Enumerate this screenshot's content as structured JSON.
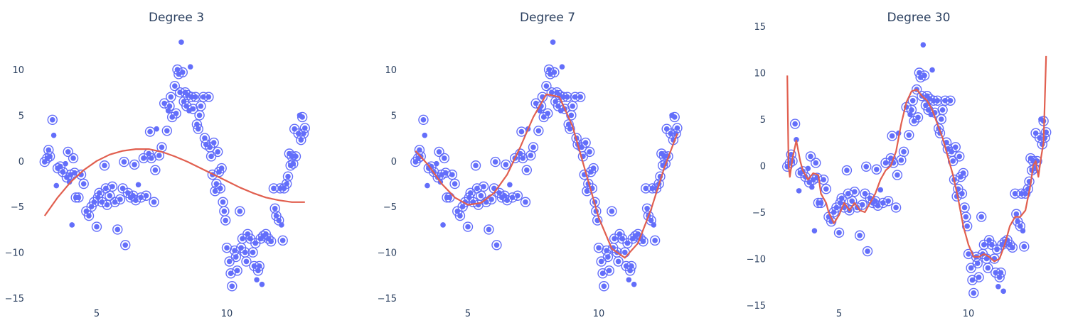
{
  "colors": {
    "points": "#636efa",
    "fit": "#e15f4f",
    "text": "#2a3f5f",
    "background": "#ffffff"
  },
  "chart_data": [
    {
      "type": "scatter",
      "title": "Degree 3",
      "xlim": [
        2.3,
        13.3
      ],
      "ylim": [
        -15.5,
        13.5
      ],
      "xticks": [
        5,
        10
      ],
      "yticks": [
        -15,
        -10,
        -5,
        0,
        5,
        10
      ],
      "grid": false,
      "legend": "none",
      "fit": [
        [
          3.0,
          -6.0
        ],
        [
          3.5,
          -4.0
        ],
        [
          4.0,
          -2.3
        ],
        [
          4.5,
          -1.0
        ],
        [
          5.0,
          0.0
        ],
        [
          5.5,
          0.7
        ],
        [
          6.0,
          1.1
        ],
        [
          6.5,
          1.3
        ],
        [
          7.0,
          1.3
        ],
        [
          7.5,
          1.0
        ],
        [
          8.0,
          0.5
        ],
        [
          8.5,
          -0.1
        ],
        [
          9.0,
          -0.8
        ],
        [
          9.5,
          -1.5
        ],
        [
          10.0,
          -2.2
        ],
        [
          10.5,
          -2.9
        ],
        [
          11.0,
          -3.5
        ],
        [
          11.5,
          -4.0
        ],
        [
          12.0,
          -4.3
        ],
        [
          12.5,
          -4.5
        ],
        [
          13.0,
          -4.5
        ]
      ]
    },
    {
      "type": "scatter",
      "title": "Degree 7",
      "xlim": [
        2.3,
        13.3
      ],
      "ylim": [
        -15.5,
        13.5
      ],
      "xticks": [
        5,
        10
      ],
      "yticks": [
        -15,
        -10,
        -5,
        0,
        5,
        10
      ],
      "grid": false,
      "legend": "none",
      "fit": [
        [
          3.0,
          1.1
        ],
        [
          3.5,
          -0.5
        ],
        [
          4.0,
          -2.5
        ],
        [
          4.5,
          -4.0
        ],
        [
          5.0,
          -4.8
        ],
        [
          5.5,
          -4.6
        ],
        [
          6.0,
          -3.5
        ],
        [
          6.5,
          -1.5
        ],
        [
          7.0,
          1.5
        ],
        [
          7.5,
          4.8
        ],
        [
          8.0,
          7.3
        ],
        [
          8.5,
          7.0
        ],
        [
          9.0,
          3.8
        ],
        [
          9.5,
          -1.2
        ],
        [
          10.0,
          -6.2
        ],
        [
          10.5,
          -9.6
        ],
        [
          11.0,
          -10.6
        ],
        [
          11.5,
          -9.0
        ],
        [
          12.0,
          -5.3
        ],
        [
          12.5,
          -0.8
        ],
        [
          13.0,
          3.0
        ]
      ]
    },
    {
      "type": "scatter",
      "title": "Degree 30",
      "xlim": [
        2.3,
        13.3
      ],
      "ylim": [
        -15.0,
        15.5
      ],
      "xticks": [
        5,
        10
      ],
      "yticks": [
        -15,
        -10,
        -5,
        0,
        5,
        10,
        15
      ],
      "grid": false,
      "legend": "none",
      "fit": [
        [
          3.0,
          9.7
        ],
        [
          3.05,
          0.0
        ],
        [
          3.1,
          -1.2
        ],
        [
          3.2,
          0.8
        ],
        [
          3.35,
          2.7
        ],
        [
          3.5,
          0.5
        ],
        [
          3.6,
          -0.5
        ],
        [
          3.8,
          -1.5
        ],
        [
          4.0,
          -0.8
        ],
        [
          4.2,
          -1.0
        ],
        [
          4.3,
          -3.0
        ],
        [
          4.5,
          -4.0
        ],
        [
          4.6,
          -5.0
        ],
        [
          4.8,
          -6.2
        ],
        [
          5.0,
          -5.3
        ],
        [
          5.2,
          -4.0
        ],
        [
          5.4,
          -4.8
        ],
        [
          5.6,
          -4.0
        ],
        [
          5.8,
          -4.8
        ],
        [
          6.0,
          -5.0
        ],
        [
          6.2,
          -4.0
        ],
        [
          6.4,
          -3.0
        ],
        [
          6.6,
          -1.5
        ],
        [
          6.8,
          -0.5
        ],
        [
          7.0,
          0.0
        ],
        [
          7.2,
          1.5
        ],
        [
          7.4,
          4.5
        ],
        [
          7.6,
          6.8
        ],
        [
          7.8,
          8.0
        ],
        [
          8.0,
          8.2
        ],
        [
          8.2,
          7.5
        ],
        [
          8.4,
          7.0
        ],
        [
          8.6,
          6.0
        ],
        [
          8.8,
          4.5
        ],
        [
          9.0,
          3.0
        ],
        [
          9.2,
          1.0
        ],
        [
          9.4,
          -1.0
        ],
        [
          9.6,
          -3.5
        ],
        [
          9.8,
          -6.5
        ],
        [
          10.0,
          -8.5
        ],
        [
          10.2,
          -9.8
        ],
        [
          10.4,
          -9.8
        ],
        [
          10.6,
          -9.5
        ],
        [
          10.8,
          -9.8
        ],
        [
          11.0,
          -10.3
        ],
        [
          11.2,
          -10.0
        ],
        [
          11.4,
          -8.5
        ],
        [
          11.6,
          -6.5
        ],
        [
          11.8,
          -5.5
        ],
        [
          12.0,
          -5.5
        ],
        [
          12.2,
          -4.8
        ],
        [
          12.4,
          -2.0
        ],
        [
          12.5,
          0.0
        ],
        [
          12.6,
          0.5
        ],
        [
          12.7,
          -1.2
        ],
        [
          12.8,
          0.8
        ],
        [
          12.9,
          2.5
        ],
        [
          13.0,
          11.8
        ]
      ]
    }
  ],
  "points": [
    {
      "x": 3.0,
      "y": -0.1,
      "c": 1
    },
    {
      "x": 3.1,
      "y": 0.3,
      "c": 1
    },
    {
      "x": 3.15,
      "y": 1.2,
      "c": 1
    },
    {
      "x": 3.2,
      "y": 0.5,
      "c": 1
    },
    {
      "x": 3.3,
      "y": 4.5,
      "c": 1
    },
    {
      "x": 3.35,
      "y": 2.8,
      "c": 0
    },
    {
      "x": 3.45,
      "y": -2.7,
      "c": 0
    },
    {
      "x": 3.5,
      "y": -0.8,
      "c": 1
    },
    {
      "x": 3.6,
      "y": -0.6,
      "c": 1
    },
    {
      "x": 3.7,
      "y": -1.2,
      "c": 1
    },
    {
      "x": 3.8,
      "y": -0.3,
      "c": 0
    },
    {
      "x": 3.85,
      "y": -1.8,
      "c": 1
    },
    {
      "x": 3.9,
      "y": 1.0,
      "c": 1
    },
    {
      "x": 3.95,
      "y": -2.3,
      "c": 0
    },
    {
      "x": 4.0,
      "y": -1.5,
      "c": 1
    },
    {
      "x": 4.05,
      "y": -7.0,
      "c": 0
    },
    {
      "x": 4.1,
      "y": 0.3,
      "c": 1
    },
    {
      "x": 4.15,
      "y": -1.3,
      "c": 1
    },
    {
      "x": 4.2,
      "y": -4.0,
      "c": 1
    },
    {
      "x": 4.3,
      "y": -4.0,
      "c": 1
    },
    {
      "x": 4.4,
      "y": -1.5,
      "c": 1
    },
    {
      "x": 4.5,
      "y": -2.5,
      "c": 1
    },
    {
      "x": 4.6,
      "y": -5.5,
      "c": 1
    },
    {
      "x": 4.7,
      "y": -6.0,
      "c": 1
    },
    {
      "x": 4.8,
      "y": -5.0,
      "c": 1
    },
    {
      "x": 4.9,
      "y": -4.5,
      "c": 1
    },
    {
      "x": 5.0,
      "y": -7.2,
      "c": 1
    },
    {
      "x": 5.05,
      "y": -4.0,
      "c": 1
    },
    {
      "x": 5.1,
      "y": -3.5,
      "c": 1
    },
    {
      "x": 5.2,
      "y": -4.5,
      "c": 1
    },
    {
      "x": 5.3,
      "y": -0.5,
      "c": 1
    },
    {
      "x": 5.35,
      "y": -3.0,
      "c": 1
    },
    {
      "x": 5.4,
      "y": -4.8,
      "c": 1
    },
    {
      "x": 5.5,
      "y": -3.8,
      "c": 1
    },
    {
      "x": 5.6,
      "y": -2.8,
      "c": 1
    },
    {
      "x": 5.7,
      "y": -4.5,
      "c": 1
    },
    {
      "x": 5.8,
      "y": -7.5,
      "c": 1
    },
    {
      "x": 5.9,
      "y": -4.2,
      "c": 1
    },
    {
      "x": 6.0,
      "y": -3.0,
      "c": 1
    },
    {
      "x": 6.05,
      "y": -0.1,
      "c": 1
    },
    {
      "x": 6.1,
      "y": -9.2,
      "c": 1
    },
    {
      "x": 6.2,
      "y": -3.5,
      "c": 1
    },
    {
      "x": 6.3,
      "y": -4.0,
      "c": 1
    },
    {
      "x": 6.4,
      "y": -3.8,
      "c": 1
    },
    {
      "x": 6.45,
      "y": -0.4,
      "c": 1
    },
    {
      "x": 6.5,
      "y": -4.3,
      "c": 1
    },
    {
      "x": 6.6,
      "y": -2.6,
      "c": 0
    },
    {
      "x": 6.7,
      "y": -4.0,
      "c": 1
    },
    {
      "x": 6.8,
      "y": 0.3,
      "c": 1
    },
    {
      "x": 6.9,
      "y": -3.8,
      "c": 1
    },
    {
      "x": 7.0,
      "y": 0.8,
      "c": 1
    },
    {
      "x": 7.05,
      "y": 3.2,
      "c": 1
    },
    {
      "x": 7.1,
      "y": 0.3,
      "c": 1
    },
    {
      "x": 7.2,
      "y": -4.5,
      "c": 1
    },
    {
      "x": 7.25,
      "y": -1.0,
      "c": 1
    },
    {
      "x": 7.3,
      "y": 3.5,
      "c": 0
    },
    {
      "x": 7.4,
      "y": 0.6,
      "c": 1
    },
    {
      "x": 7.5,
      "y": 1.5,
      "c": 1
    },
    {
      "x": 7.6,
      "y": 6.3,
      "c": 1
    },
    {
      "x": 7.7,
      "y": 3.3,
      "c": 1
    },
    {
      "x": 7.75,
      "y": 5.5,
      "c": 0
    },
    {
      "x": 7.8,
      "y": 6.0,
      "c": 1
    },
    {
      "x": 7.85,
      "y": 7.0,
      "c": 1
    },
    {
      "x": 7.9,
      "y": 4.8,
      "c": 1
    },
    {
      "x": 8.0,
      "y": 8.2,
      "c": 1
    },
    {
      "x": 8.05,
      "y": 5.2,
      "c": 1
    },
    {
      "x": 8.1,
      "y": 10.0,
      "c": 1
    },
    {
      "x": 8.15,
      "y": 9.5,
      "c": 1
    },
    {
      "x": 8.2,
      "y": 7.5,
      "c": 1
    },
    {
      "x": 8.25,
      "y": 13.0,
      "c": 0
    },
    {
      "x": 8.3,
      "y": 9.7,
      "c": 1
    },
    {
      "x": 8.35,
      "y": 6.5,
      "c": 1
    },
    {
      "x": 8.4,
      "y": 7.5,
      "c": 1
    },
    {
      "x": 8.45,
      "y": 6.0,
      "c": 1
    },
    {
      "x": 8.5,
      "y": 7.2,
      "c": 1
    },
    {
      "x": 8.55,
      "y": 5.5,
      "c": 0
    },
    {
      "x": 8.6,
      "y": 10.3,
      "c": 0
    },
    {
      "x": 8.65,
      "y": 7.0,
      "c": 1
    },
    {
      "x": 8.7,
      "y": 5.7,
      "c": 1
    },
    {
      "x": 8.8,
      "y": 7.0,
      "c": 1
    },
    {
      "x": 8.85,
      "y": 4.0,
      "c": 1
    },
    {
      "x": 8.9,
      "y": 3.5,
      "c": 1
    },
    {
      "x": 8.95,
      "y": 5.0,
      "c": 1
    },
    {
      "x": 9.0,
      "y": 6.0,
      "c": 1
    },
    {
      "x": 9.1,
      "y": 7.0,
      "c": 1
    },
    {
      "x": 9.15,
      "y": 2.5,
      "c": 1
    },
    {
      "x": 9.2,
      "y": 1.8,
      "c": 1
    },
    {
      "x": 9.3,
      "y": 7.0,
      "c": 1
    },
    {
      "x": 9.35,
      "y": 1.5,
      "c": 1
    },
    {
      "x": 9.4,
      "y": 0.5,
      "c": 1
    },
    {
      "x": 9.45,
      "y": -1.5,
      "c": 1
    },
    {
      "x": 9.5,
      "y": 2.0,
      "c": 1
    },
    {
      "x": 9.55,
      "y": -3.3,
      "c": 1
    },
    {
      "x": 9.6,
      "y": -2.5,
      "c": 1
    },
    {
      "x": 9.65,
      "y": 1.0,
      "c": 1
    },
    {
      "x": 9.7,
      "y": -1.2,
      "c": 1
    },
    {
      "x": 9.75,
      "y": -3.0,
      "c": 1
    },
    {
      "x": 9.8,
      "y": -0.8,
      "c": 1
    },
    {
      "x": 9.85,
      "y": -4.5,
      "c": 1
    },
    {
      "x": 9.9,
      "y": -5.5,
      "c": 1
    },
    {
      "x": 9.95,
      "y": -6.5,
      "c": 1
    },
    {
      "x": 10.0,
      "y": -9.5,
      "c": 1
    },
    {
      "x": 10.1,
      "y": -11.0,
      "c": 1
    },
    {
      "x": 10.15,
      "y": -12.3,
      "c": 1
    },
    {
      "x": 10.2,
      "y": -13.7,
      "c": 1
    },
    {
      "x": 10.3,
      "y": -9.8,
      "c": 1
    },
    {
      "x": 10.35,
      "y": -10.5,
      "c": 1
    },
    {
      "x": 10.4,
      "y": -12.0,
      "c": 1
    },
    {
      "x": 10.5,
      "y": -5.5,
      "c": 1
    },
    {
      "x": 10.55,
      "y": -9.5,
      "c": 1
    },
    {
      "x": 10.6,
      "y": -8.5,
      "c": 1
    },
    {
      "x": 10.7,
      "y": -10.0,
      "c": 1
    },
    {
      "x": 10.75,
      "y": -11.0,
      "c": 1
    },
    {
      "x": 10.8,
      "y": -8.0,
      "c": 1
    },
    {
      "x": 10.9,
      "y": -8.5,
      "c": 1
    },
    {
      "x": 11.0,
      "y": -10.0,
      "c": 1
    },
    {
      "x": 11.05,
      "y": -11.5,
      "c": 1
    },
    {
      "x": 11.1,
      "y": -9.0,
      "c": 1
    },
    {
      "x": 11.15,
      "y": -13.0,
      "c": 0
    },
    {
      "x": 11.2,
      "y": -12.0,
      "c": 1
    },
    {
      "x": 11.25,
      "y": -11.5,
      "c": 1
    },
    {
      "x": 11.3,
      "y": -8.5,
      "c": 1
    },
    {
      "x": 11.35,
      "y": -13.5,
      "c": 0
    },
    {
      "x": 11.4,
      "y": -8.2,
      "c": 1
    },
    {
      "x": 11.5,
      "y": -8.0,
      "c": 1
    },
    {
      "x": 11.6,
      "y": -8.5,
      "c": 1
    },
    {
      "x": 11.7,
      "y": -8.8,
      "c": 1
    },
    {
      "x": 11.8,
      "y": -3.0,
      "c": 1
    },
    {
      "x": 11.85,
      "y": -5.2,
      "c": 1
    },
    {
      "x": 11.9,
      "y": -6.0,
      "c": 1
    },
    {
      "x": 12.0,
      "y": -6.5,
      "c": 1
    },
    {
      "x": 12.05,
      "y": -3.0,
      "c": 1
    },
    {
      "x": 12.1,
      "y": -7.0,
      "c": 0
    },
    {
      "x": 12.15,
      "y": -8.7,
      "c": 1
    },
    {
      "x": 12.2,
      "y": -3.0,
      "c": 1
    },
    {
      "x": 12.3,
      "y": -2.5,
      "c": 1
    },
    {
      "x": 12.35,
      "y": -1.7,
      "c": 1
    },
    {
      "x": 12.4,
      "y": 0.8,
      "c": 1
    },
    {
      "x": 12.45,
      "y": -0.5,
      "c": 1
    },
    {
      "x": 12.5,
      "y": 0.5,
      "c": 1
    },
    {
      "x": 12.55,
      "y": -0.3,
      "c": 1
    },
    {
      "x": 12.6,
      "y": 3.5,
      "c": 1
    },
    {
      "x": 12.65,
      "y": 0.5,
      "c": 1
    },
    {
      "x": 12.75,
      "y": 3.0,
      "c": 1
    },
    {
      "x": 12.8,
      "y": 5.0,
      "c": 0
    },
    {
      "x": 12.85,
      "y": 2.3,
      "c": 1
    },
    {
      "x": 12.9,
      "y": 4.8,
      "c": 1
    },
    {
      "x": 12.95,
      "y": 3.0,
      "c": 1
    },
    {
      "x": 13.0,
      "y": 3.6,
      "c": 1
    }
  ]
}
